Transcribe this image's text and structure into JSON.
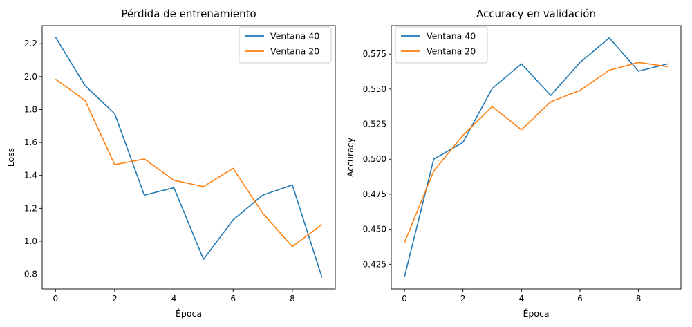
{
  "chart_data": [
    {
      "type": "line",
      "title": "Pérdida de entrenamiento",
      "xlabel": "Época",
      "ylabel": "Loss",
      "xlim": [
        -0.45,
        9.45
      ],
      "ylim": [
        0.71,
        2.31
      ],
      "xticks": [
        0,
        2,
        4,
        6,
        8
      ],
      "xtick_labels": [
        "0",
        "2",
        "4",
        "6",
        "8"
      ],
      "yticks": [
        0.8,
        1.0,
        1.2,
        1.4,
        1.6,
        1.8,
        2.0,
        2.2
      ],
      "ytick_labels": [
        "0.8",
        "1.0",
        "1.2",
        "1.4",
        "1.6",
        "1.8",
        "2.0",
        "2.2"
      ],
      "legend_position": "top-right",
      "grid": false,
      "x": [
        0,
        1,
        2,
        3,
        4,
        5,
        6,
        7,
        8,
        9
      ],
      "series": [
        {
          "name": "Ventana 40",
          "color": "#1f77b4",
          "values": [
            2.24,
            1.945,
            1.775,
            1.28,
            1.325,
            0.89,
            1.13,
            1.28,
            1.342,
            0.78
          ]
        },
        {
          "name": "Ventana 20",
          "color": "#ff7f0e",
          "values": [
            1.985,
            1.855,
            1.465,
            1.5,
            1.37,
            1.332,
            1.443,
            1.17,
            0.967,
            1.102
          ]
        }
      ]
    },
    {
      "type": "line",
      "title": "Accuracy en validación",
      "xlabel": "Época",
      "ylabel": "Accuracy",
      "xlim": [
        -0.45,
        9.45
      ],
      "ylim": [
        0.4074,
        0.5953
      ],
      "xticks": [
        0,
        2,
        4,
        6,
        8
      ],
      "xtick_labels": [
        "0",
        "2",
        "4",
        "6",
        "8"
      ],
      "yticks": [
        0.425,
        0.45,
        0.475,
        0.5,
        0.525,
        0.55,
        0.575
      ],
      "ytick_labels": [
        "0.425",
        "0.450",
        "0.475",
        "0.500",
        "0.525",
        "0.550",
        "0.575"
      ],
      "legend_position": "top-left",
      "grid": false,
      "x": [
        0,
        1,
        2,
        3,
        4,
        5,
        6,
        7,
        8,
        9
      ],
      "series": [
        {
          "name": "Ventana 40",
          "color": "#1f77b4",
          "values": [
            0.416,
            0.5,
            0.512,
            0.5505,
            0.568,
            0.5455,
            0.569,
            0.5865,
            0.5628,
            0.568
          ]
        },
        {
          "name": "Ventana 20",
          "color": "#ff7f0e",
          "values": [
            0.4405,
            0.4915,
            0.517,
            0.5375,
            0.521,
            0.541,
            0.549,
            0.5635,
            0.569,
            0.566
          ]
        }
      ]
    }
  ]
}
